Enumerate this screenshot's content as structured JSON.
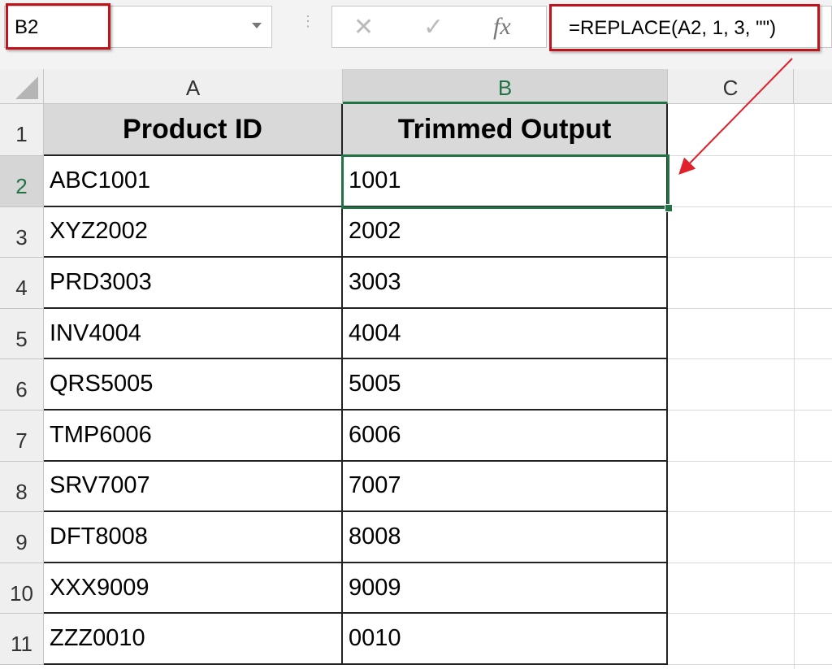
{
  "formula_bar": {
    "name_box": "B2",
    "cancel_icon": "x-icon",
    "enter_icon": "check-icon",
    "function_icon": "fx-icon",
    "fx_label": "fx",
    "formula": "=REPLACE(A2, 1, 3, \"\")"
  },
  "columns": [
    "A",
    "B",
    "C"
  ],
  "selected_cell": "B2",
  "table": {
    "headers": [
      "Product ID",
      "Trimmed Output"
    ],
    "rows": [
      [
        "ABC1001",
        "1001"
      ],
      [
        "XYZ2002",
        "2002"
      ],
      [
        "PRD3003",
        "3003"
      ],
      [
        "INV4004",
        "4004"
      ],
      [
        "QRS5005",
        "5005"
      ],
      [
        "TMP6006",
        "6006"
      ],
      [
        "SRV7007",
        "7007"
      ],
      [
        "DFT8008",
        "8008"
      ],
      [
        "XXX9009",
        "9009"
      ],
      [
        "ZZZ0010",
        "0010"
      ]
    ]
  },
  "row_numbers": [
    "1",
    "2",
    "3",
    "4",
    "5",
    "6",
    "7",
    "8",
    "9",
    "10",
    "11"
  ],
  "colors": {
    "annotation_red": "#c0141c",
    "selection_green": "#217346",
    "header_fill": "#d9d9d9"
  }
}
